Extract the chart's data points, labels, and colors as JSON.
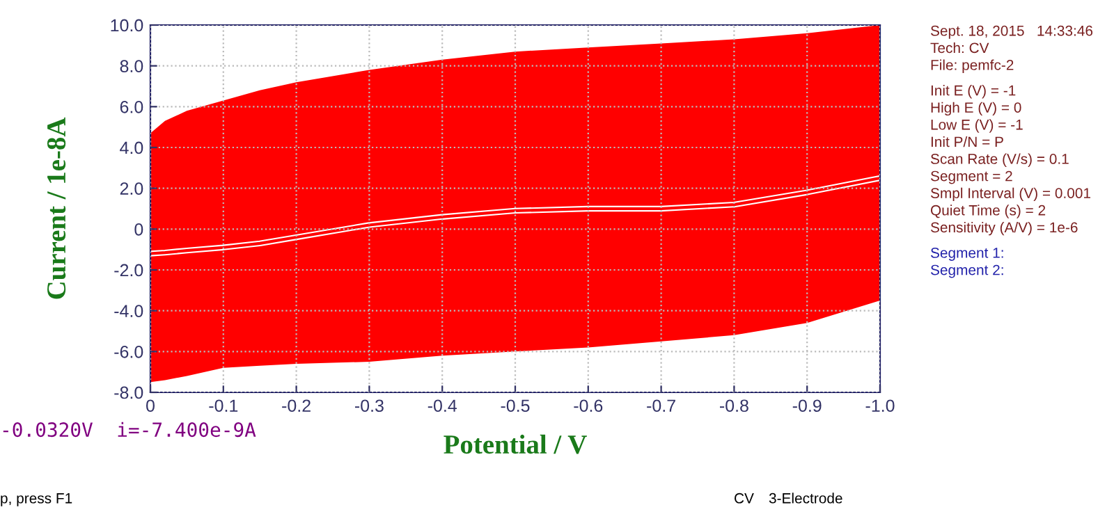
{
  "chart_data": {
    "type": "line",
    "xlabel": "Potential / V",
    "ylabel": "Current / 1e-8A",
    "x": [
      0,
      -0.02,
      -0.05,
      -0.1,
      -0.15,
      -0.2,
      -0.3,
      -0.4,
      -0.5,
      -0.6,
      -0.7,
      -0.8,
      -0.9,
      -1.0
    ],
    "series": [
      {
        "color": "#ff0000",
        "values": [
          -1.2,
          -1.15,
          -1.05,
          -0.9,
          -0.7,
          -0.4,
          0.2,
          0.6,
          0.9,
          1.0,
          1.0,
          1.2,
          1.8,
          2.5
        ],
        "upper": [
          4.7,
          5.3,
          5.8,
          6.3,
          6.8,
          7.2,
          7.8,
          8.3,
          8.7,
          8.9,
          9.1,
          9.3,
          9.6,
          10.0
        ],
        "lower": [
          -7.5,
          -7.4,
          -7.2,
          -6.8,
          -6.7,
          -6.6,
          -6.5,
          -6.2,
          -6.0,
          -5.8,
          -5.5,
          -5.2,
          -4.6,
          -3.5
        ]
      }
    ],
    "xlim": [
      0,
      -1.0
    ],
    "xticks": [
      0,
      -0.1,
      -0.2,
      -0.3,
      -0.4,
      -0.5,
      -0.6,
      -0.7,
      -0.8,
      -0.9,
      {
        "value": -1.0,
        "label": "-1.0"
      }
    ],
    "ylim": [
      -8,
      10
    ],
    "yticks": [
      {
        "value": -8,
        "label": "-8.0"
      },
      {
        "value": -6,
        "label": "-6.0"
      },
      {
        "value": -4,
        "label": "-4.0"
      },
      {
        "value": -2,
        "label": "-2.0"
      },
      0,
      {
        "value": 2,
        "label": "2.0"
      },
      {
        "value": 4,
        "label": "4.0"
      },
      {
        "value": 6,
        "label": "6.0"
      },
      {
        "value": 8,
        "label": "8.0"
      },
      {
        "value": 10,
        "label": "10.0"
      }
    ],
    "grid": true,
    "annotations": [
      "Sept. 18, 2015   14:33:46",
      "Tech: CV",
      "File: pemfc-2",
      "Init E (V) = -1",
      "High E (V) = 0",
      "Low E (V) = -1",
      "Init P/N = P",
      "Scan Rate (V/s) = 0.1",
      "Segment = 2",
      "Smpl Interval (V) = 0.001",
      "Quiet Time (s) = 2",
      "Sensitivity (A/V) = 1e-6",
      "Segment 1:",
      "Segment 2:",
      "-0.0320V  i=-7.400e-9A",
      "p, press F1",
      "CV",
      "3-Electrode"
    ]
  }
}
